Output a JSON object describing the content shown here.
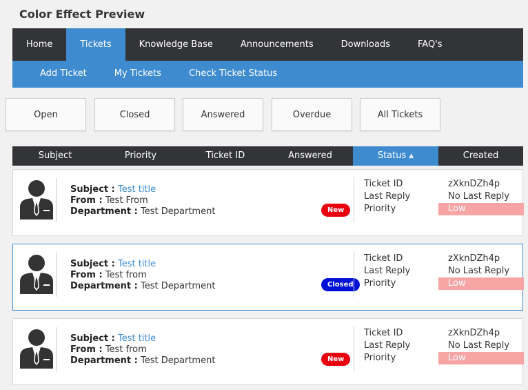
{
  "title": "Color Effect Preview",
  "nav": [
    {
      "label": "Home",
      "active": false
    },
    {
      "label": "Tickets",
      "active": true
    },
    {
      "label": "Knowledge Base",
      "active": false
    },
    {
      "label": "Announcements",
      "active": false
    },
    {
      "label": "Downloads",
      "active": false
    },
    {
      "label": "FAQ's",
      "active": false
    }
  ],
  "subnav": [
    "Add Ticket",
    "My Tickets",
    "Check Ticket Status"
  ],
  "filters": [
    "Open",
    "Closed",
    "Answered",
    "Overdue",
    "All Tickets"
  ],
  "columns": [
    "Subject",
    "Priority",
    "Ticket ID",
    "Answered",
    "Status",
    "Created"
  ],
  "sorted_column": "Status",
  "labels": {
    "subject": "Subject :",
    "from": "From :",
    "department": "Department :",
    "ticket_id": "Ticket ID",
    "last_reply": "Last Reply",
    "priority": "Priority"
  },
  "tickets": [
    {
      "subject": "Test title",
      "from": "Test From",
      "department": "Test Department",
      "status": "New",
      "ticket_id": "zXknDZh4p",
      "last_reply": "No Last Reply",
      "priority": "Low"
    },
    {
      "subject": "Test title",
      "from": "Test from",
      "department": "Test Department",
      "status": "Closed",
      "ticket_id": "zXknDZh4p",
      "last_reply": "No Last Reply",
      "priority": "Low"
    },
    {
      "subject": "Test title",
      "from": "Test from",
      "department": "Test Department",
      "status": "New",
      "ticket_id": "zXknDZh4p",
      "last_reply": "No Last Reply",
      "priority": "Low"
    }
  ],
  "colors": {
    "nav_bg": "#333437",
    "accent": "#3e8bd0",
    "badge_new": "#e8000f",
    "badge_closed": "#0011d6",
    "priority_low": "#f7a4a5"
  },
  "icons": {
    "avatar": "user-avatar-icon",
    "sort": "sort-asc-icon"
  }
}
